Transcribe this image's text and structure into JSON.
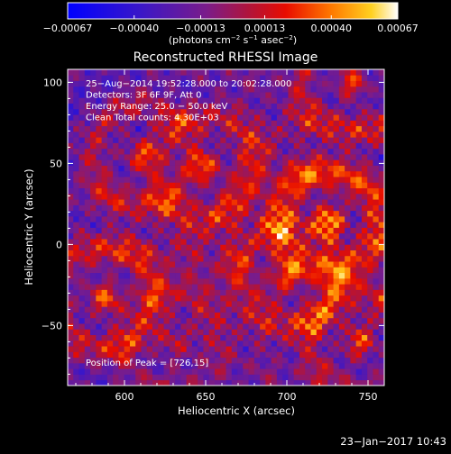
{
  "chart_data": {
    "type": "heatmap",
    "title": "Reconstructed RHESSI Image",
    "xlabel": "Heliocentric X (arcsec)",
    "ylabel": "Heliocentric Y (arcsec)",
    "xlim": [
      565,
      760
    ],
    "ylim": [
      -87,
      108
    ],
    "x_ticks": [
      600,
      650,
      700,
      750
    ],
    "y_ticks": [
      100,
      50,
      0,
      -50
    ],
    "x_tick_labels": [
      "600",
      "650",
      "700",
      "750"
    ],
    "y_tick_labels": [
      "100",
      "50",
      "0",
      "−50"
    ],
    "colorbar": {
      "range": [
        -0.00067,
        0.00067
      ],
      "ticks": [
        -0.00067,
        -0.0004,
        -0.00013,
        0.00013,
        0.0004,
        0.00067
      ],
      "tick_labels": [
        "−0.00067",
        "−0.00040",
        "−0.00013",
        "0.00013",
        "0.00040",
        "0.00067"
      ],
      "units_prefix": "(photons cm",
      "units_exp1": "−2",
      "units_mid": " s",
      "units_exp2": "−1",
      "units_mid2": " asec",
      "units_exp3": "−2",
      "units_suffix": ")"
    },
    "annotations": [
      "25−Aug−2014 19:52:28.000 to 20:02:28.000",
      "Detectors: 3F 6F 9F, Att 0",
      "Energy Range: 25.0 − 50.0 keV",
      "Clean     Total counts: 4.30E+03"
    ],
    "peak_label": "Position of Peak = [726,15]",
    "peak": [
      726,
      15
    ],
    "bright_sources": [
      {
        "x": 726,
        "y": 15,
        "value": 0.00067
      },
      {
        "x": 588,
        "y": -33,
        "value": 0.00055
      },
      {
        "x": 740,
        "y": 100,
        "value": 0.0005
      },
      {
        "x": 650,
        "y": 48,
        "value": 0.00045
      },
      {
        "x": 610,
        "y": 55,
        "value": 0.0004
      },
      {
        "x": 700,
        "y": -20,
        "value": 0.0004
      },
      {
        "x": 745,
        "y": -60,
        "value": 0.00045
      },
      {
        "x": 630,
        "y": -60,
        "value": 0.0003
      }
    ]
  },
  "footer": {
    "timestamp": "23−Jan−2017 10:43"
  }
}
